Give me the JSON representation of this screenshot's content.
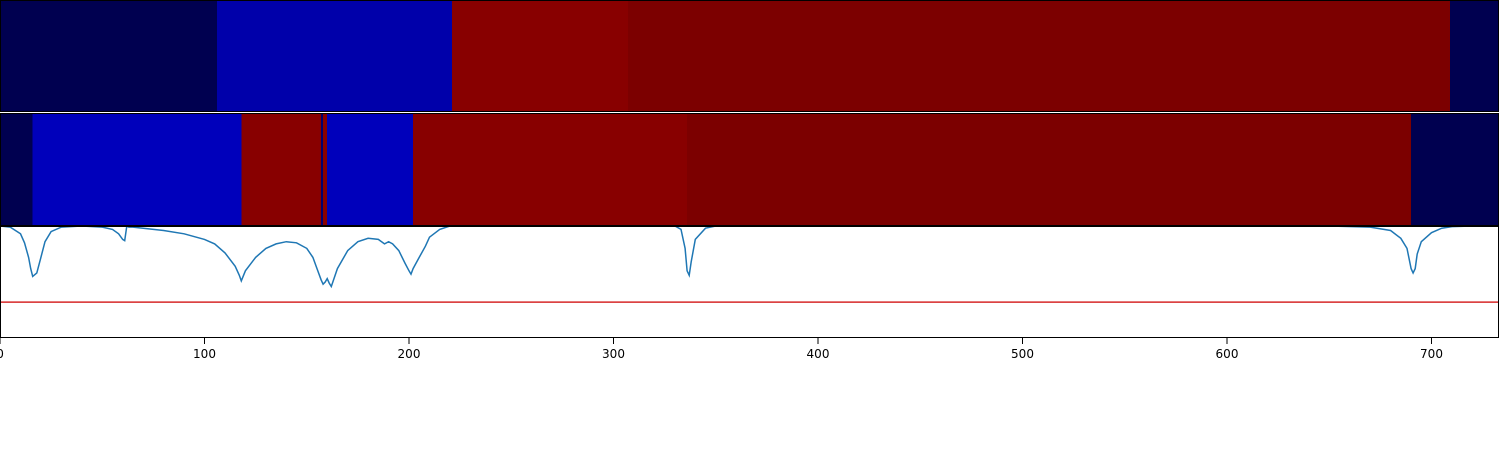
{
  "chart_data": [
    {
      "type": "heatmap",
      "name": "segmentation-track-1",
      "xlim": [
        0,
        733
      ],
      "segments": [
        {
          "start": 0,
          "end": 106,
          "color": "#000050"
        },
        {
          "start": 106,
          "end": 221,
          "color": "#0000aa"
        },
        {
          "start": 221,
          "end": 307,
          "color": "#880000"
        },
        {
          "start": 307,
          "end": 709,
          "color": "#7c0000"
        },
        {
          "start": 709,
          "end": 733,
          "color": "#000050"
        }
      ]
    },
    {
      "type": "heatmap",
      "name": "segmentation-track-2",
      "xlim": [
        0,
        733
      ],
      "segments": [
        {
          "start": 0,
          "end": 16,
          "color": "#000050"
        },
        {
          "start": 16,
          "end": 118,
          "color": "#0000bb"
        },
        {
          "start": 118,
          "end": 157,
          "color": "#880000"
        },
        {
          "start": 157,
          "end": 158,
          "color": "#000070"
        },
        {
          "start": 158,
          "end": 160,
          "color": "#880000"
        },
        {
          "start": 160,
          "end": 202,
          "color": "#0000bb"
        },
        {
          "start": 202,
          "end": 336,
          "color": "#880000"
        },
        {
          "start": 336,
          "end": 690,
          "color": "#7c0000"
        },
        {
          "start": 690,
          "end": 733,
          "color": "#000050"
        }
      ]
    },
    {
      "type": "line",
      "name": "boundary-score",
      "xlim": [
        0,
        733
      ],
      "ylim": [
        0,
        1
      ],
      "threshold": 0.32,
      "threshold_color": "#d62728",
      "line_color": "#1f77b4",
      "series": [
        {
          "x": [
            0,
            5,
            10,
            12,
            14,
            15,
            16,
            18,
            20,
            22,
            25,
            30,
            40,
            50,
            55,
            58,
            60,
            61,
            62,
            63,
            65,
            70,
            80,
            90,
            100,
            105,
            110,
            115,
            117,
            118,
            120,
            125,
            130,
            135,
            140,
            145,
            150,
            153,
            155,
            157,
            158,
            159,
            160,
            161,
            162,
            165,
            170,
            175,
            180,
            185,
            188,
            190,
            192,
            195,
            198,
            200,
            201,
            202,
            205,
            208,
            210,
            215,
            220,
            230,
            300,
            325,
            330,
            333,
            335,
            336,
            337,
            338,
            340,
            345,
            350,
            360,
            400,
            500,
            600,
            650,
            670,
            680,
            685,
            688,
            690,
            691,
            692,
            693,
            695,
            700,
            705,
            710,
            720,
            733
          ],
          "y": [
            1.0,
            0.99,
            0.93,
            0.85,
            0.72,
            0.62,
            0.55,
            0.58,
            0.72,
            0.86,
            0.95,
            0.99,
            1.0,
            0.99,
            0.97,
            0.93,
            0.88,
            0.87,
            1.0,
            0.99,
            0.99,
            0.98,
            0.96,
            0.93,
            0.88,
            0.84,
            0.76,
            0.64,
            0.56,
            0.51,
            0.6,
            0.72,
            0.8,
            0.84,
            0.86,
            0.85,
            0.8,
            0.72,
            0.62,
            0.52,
            0.48,
            0.5,
            0.53,
            0.49,
            0.46,
            0.62,
            0.78,
            0.86,
            0.89,
            0.88,
            0.84,
            0.86,
            0.84,
            0.78,
            0.67,
            0.6,
            0.57,
            0.62,
            0.72,
            0.82,
            0.9,
            0.97,
            1.0,
            1.0,
            1.0,
            1.0,
            1.0,
            0.97,
            0.8,
            0.6,
            0.56,
            0.68,
            0.88,
            0.98,
            1.0,
            1.0,
            1.0,
            1.0,
            1.0,
            1.0,
            0.99,
            0.96,
            0.89,
            0.8,
            0.62,
            0.58,
            0.62,
            0.75,
            0.86,
            0.94,
            0.98,
            0.995,
            1.0,
            1.0
          ]
        }
      ]
    }
  ],
  "x_axis": {
    "ticks": [
      0,
      100,
      200,
      300,
      400,
      500,
      600,
      700
    ],
    "tick_labels": [
      "0",
      "100",
      "200",
      "300",
      "400",
      "500",
      "600",
      "700"
    ]
  }
}
